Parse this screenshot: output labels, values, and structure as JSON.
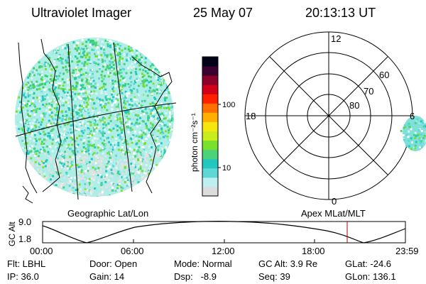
{
  "header": {
    "title": "Ultraviolet Imager",
    "date": "25 May 07",
    "time": "20:13:13 UT"
  },
  "colorbar": {
    "unit_label": "photon cm⁻²s⁻¹",
    "tick_labels": [
      "100",
      "10"
    ],
    "colors": [
      "#dcdcdc",
      "#bfeff0",
      "#5fd7d7",
      "#22c8c0",
      "#4cd37a",
      "#7ae02e",
      "#c8ec1c",
      "#f6e60e",
      "#ffb000",
      "#ff6f00",
      "#ff2000",
      "#d00018",
      "#8c002a",
      "#3c0030",
      "#000018"
    ]
  },
  "polar": {
    "mlt_labels": [
      "12",
      "18",
      "6",
      "0"
    ],
    "lat_labels": [
      "60",
      "70",
      "80"
    ]
  },
  "left_map_label": "Geographic Lat/Lon",
  "right_map_label": "Apex MLat/MLT",
  "altitude_plot": {
    "axis_label": "GC Alt",
    "y_ticks": [
      "9.0",
      "1.8"
    ],
    "x_ticks": [
      "00:00",
      "06:00",
      "12:00",
      "18:00",
      "23:59"
    ],
    "marker_color": "#b00000"
  },
  "status": {
    "flt": "Flt: LBHL",
    "ip": "IP: 36.0",
    "door": "Door: Open",
    "gain": "Gain: 14",
    "mode": "Mode: Normal",
    "dsp": "Dsp:   -8.9",
    "gc_alt": "GC Alt: 3.9 Re",
    "seq": "Seq: 39",
    "glat": "GLat: -24.6",
    "glon": "GLon: 136.1"
  }
}
